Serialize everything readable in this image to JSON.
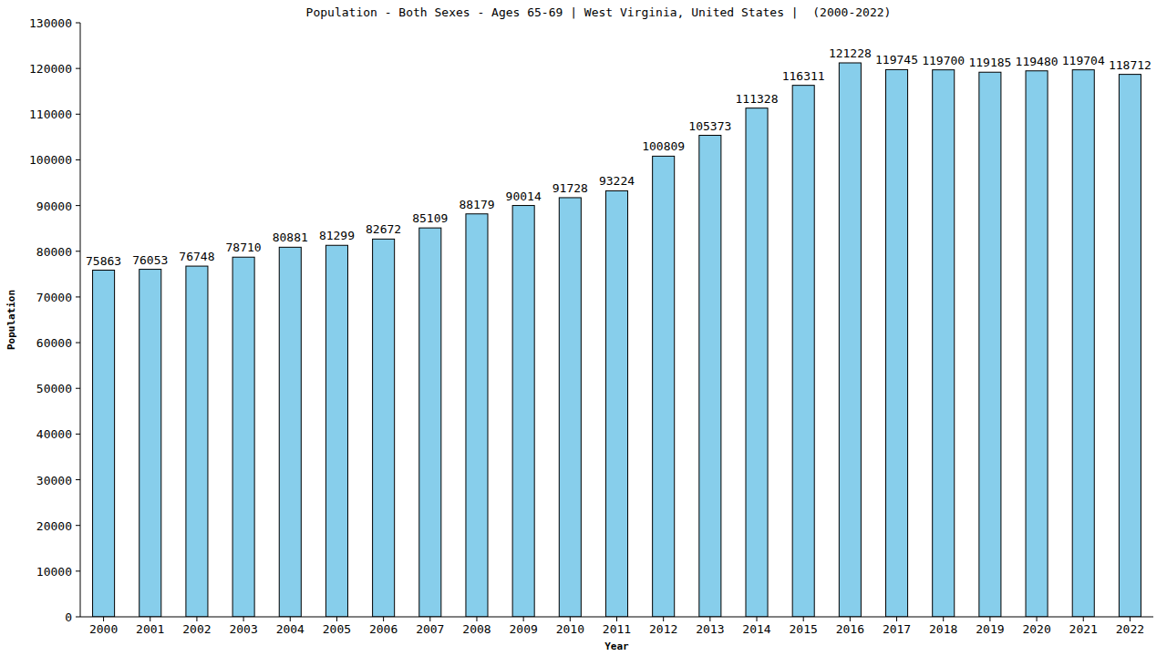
{
  "chart_data": {
    "type": "bar",
    "title": "Population - Both Sexes - Ages 65-69 | West Virginia, United States |  (2000-2022)",
    "x_label": "Year",
    "y_label": "Population",
    "categories": [
      "2000",
      "2001",
      "2002",
      "2003",
      "2004",
      "2005",
      "2006",
      "2007",
      "2008",
      "2009",
      "2010",
      "2011",
      "2012",
      "2013",
      "2014",
      "2015",
      "2016",
      "2017",
      "2018",
      "2019",
      "2020",
      "2021",
      "2022"
    ],
    "values": [
      75863,
      76053,
      76748,
      78710,
      80881,
      81299,
      82672,
      85109,
      88179,
      90014,
      91728,
      93224,
      100809,
      105373,
      111328,
      116311,
      121228,
      119745,
      119700,
      119185,
      119480,
      119704,
      118712
    ],
    "color": "#87ceeb",
    "ylim": [
      0,
      130000
    ],
    "yticks": [
      0,
      10000,
      20000,
      30000,
      40000,
      50000,
      60000,
      70000,
      80000,
      90000,
      100000,
      110000,
      120000,
      130000
    ],
    "grid": false,
    "data_labels": true
  }
}
